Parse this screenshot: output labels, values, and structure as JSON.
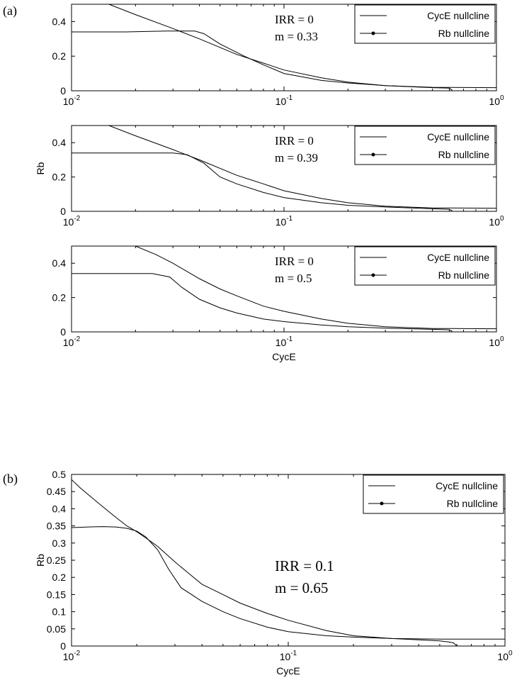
{
  "panel_labels": [
    "(a)",
    "(b)"
  ],
  "chart_data": [
    {
      "type": "line",
      "panel": "(a)",
      "xscale": "log",
      "xlim": [
        0.01,
        1
      ],
      "ylim": [
        0,
        0.5
      ],
      "xticks": [
        0.01,
        0.1,
        1
      ],
      "yticks": [
        "0",
        "0.2",
        "0.4"
      ],
      "xlabel": "",
      "ylabel": "",
      "annotation": [
        "IRR = 0",
        "m = 0.33"
      ],
      "legend": [
        "CycE nullcline",
        "Rb nullcline"
      ],
      "legend_position": "top-right",
      "series": [
        {
          "name": "CycE nullcline",
          "x": [
            0.01,
            0.018,
            0.028,
            0.038,
            0.042,
            0.05,
            0.065,
            0.08,
            0.1,
            0.15,
            0.2,
            0.3,
            0.5,
            0.6,
            0.62
          ],
          "y": [
            0.34,
            0.34,
            0.345,
            0.345,
            0.33,
            0.27,
            0.2,
            0.15,
            0.1,
            0.06,
            0.045,
            0.03,
            0.018,
            0.015,
            0.003
          ]
        },
        {
          "name": "Rb nullcline",
          "x": [
            0.01,
            0.015,
            0.02,
            0.03,
            0.04,
            0.06,
            0.08,
            0.1,
            0.15,
            0.2,
            0.3,
            0.5,
            1.0
          ],
          "y": [
            0.62,
            0.5,
            0.44,
            0.36,
            0.3,
            0.21,
            0.16,
            0.12,
            0.075,
            0.05,
            0.03,
            0.02,
            0.018
          ]
        }
      ]
    },
    {
      "type": "line",
      "xscale": "log",
      "xlim": [
        0.01,
        1
      ],
      "ylim": [
        0,
        0.5
      ],
      "xticks": [
        0.01,
        0.1,
        1
      ],
      "yticks": [
        "0",
        "0.2",
        "0.4"
      ],
      "xlabel": "",
      "ylabel": "Rb",
      "annotation": [
        "IRR = 0",
        "m = 0.39"
      ],
      "legend": [
        "CycE nullcline",
        "Rb nullcline"
      ],
      "legend_position": "top-right",
      "series": [
        {
          "name": "CycE nullcline",
          "x": [
            0.01,
            0.02,
            0.03,
            0.035,
            0.042,
            0.05,
            0.06,
            0.08,
            0.1,
            0.15,
            0.2,
            0.3,
            0.5,
            0.6,
            0.62
          ],
          "y": [
            0.34,
            0.34,
            0.34,
            0.33,
            0.28,
            0.2,
            0.16,
            0.11,
            0.08,
            0.05,
            0.035,
            0.025,
            0.015,
            0.012,
            0.003
          ]
        },
        {
          "name": "Rb nullcline",
          "x": [
            0.01,
            0.015,
            0.02,
            0.03,
            0.04,
            0.06,
            0.08,
            0.1,
            0.15,
            0.2,
            0.3,
            0.5,
            1.0
          ],
          "y": [
            0.62,
            0.5,
            0.44,
            0.36,
            0.3,
            0.21,
            0.16,
            0.12,
            0.075,
            0.05,
            0.03,
            0.02,
            0.018
          ]
        }
      ]
    },
    {
      "type": "line",
      "xscale": "log",
      "xlim": [
        0.01,
        1
      ],
      "ylim": [
        0,
        0.5
      ],
      "xticks": [
        0.01,
        0.1,
        1
      ],
      "yticks": [
        "0",
        "0.2",
        "0.4"
      ],
      "xlabel": "CycE",
      "ylabel": "",
      "annotation": [
        "IRR = 0",
        "m = 0.5"
      ],
      "legend": [
        "CycE nullcline",
        "Rb nullcline"
      ],
      "legend_position": "top-right",
      "series": [
        {
          "name": "CycE nullcline",
          "x": [
            0.01,
            0.02,
            0.024,
            0.029,
            0.033,
            0.04,
            0.05,
            0.06,
            0.08,
            0.1,
            0.15,
            0.2,
            0.3,
            0.5,
            0.6,
            0.62
          ],
          "y": [
            0.34,
            0.34,
            0.34,
            0.32,
            0.26,
            0.19,
            0.14,
            0.11,
            0.075,
            0.06,
            0.04,
            0.03,
            0.022,
            0.015,
            0.012,
            0.003
          ]
        },
        {
          "name": "Rb nullcline",
          "x": [
            0.01,
            0.015,
            0.02,
            0.025,
            0.03,
            0.04,
            0.05,
            0.06,
            0.08,
            0.1,
            0.15,
            0.2,
            0.3,
            0.5,
            1.0
          ],
          "y": [
            0.65,
            0.55,
            0.5,
            0.45,
            0.4,
            0.31,
            0.25,
            0.21,
            0.15,
            0.12,
            0.075,
            0.05,
            0.03,
            0.02,
            0.018
          ]
        }
      ]
    },
    {
      "type": "line",
      "panel": "(b)",
      "xscale": "log",
      "xlim": [
        0.01,
        1
      ],
      "ylim": [
        0,
        0.5
      ],
      "xticks": [
        0.01,
        0.1,
        1
      ],
      "yticks": [
        "0",
        "0.05",
        "0.1",
        "0.15",
        "0.2",
        "0.25",
        "0.3",
        "0.35",
        "0.4",
        "0.45",
        "0.5"
      ],
      "xlabel": "CycE",
      "ylabel": "Rb",
      "annotation": [
        "IRR = 0.1",
        "m = 0.65"
      ],
      "legend": [
        "CycE nullcline",
        "Rb nullcline"
      ],
      "legend_position": "top-right",
      "series": [
        {
          "name": "CycE nullcline",
          "x": [
            0.01,
            0.012,
            0.014,
            0.016,
            0.018,
            0.02,
            0.022,
            0.025,
            0.028,
            0.032,
            0.04,
            0.05,
            0.06,
            0.08,
            0.1,
            0.15,
            0.2,
            0.3,
            0.4,
            0.5,
            0.55,
            0.58,
            0.6
          ],
          "y": [
            0.345,
            0.347,
            0.348,
            0.347,
            0.343,
            0.335,
            0.318,
            0.28,
            0.225,
            0.17,
            0.13,
            0.1,
            0.08,
            0.055,
            0.042,
            0.03,
            0.026,
            0.022,
            0.018,
            0.015,
            0.012,
            0.009,
            0.0
          ]
        },
        {
          "name": "Rb nullcline",
          "x": [
            0.01,
            0.011,
            0.012,
            0.014,
            0.016,
            0.018,
            0.02,
            0.022,
            0.025,
            0.03,
            0.035,
            0.04,
            0.05,
            0.06,
            0.08,
            0.1,
            0.15,
            0.2,
            0.3,
            0.5,
            1.0
          ],
          "y": [
            0.485,
            0.46,
            0.44,
            0.405,
            0.375,
            0.35,
            0.333,
            0.315,
            0.29,
            0.245,
            0.21,
            0.18,
            0.15,
            0.125,
            0.095,
            0.075,
            0.045,
            0.03,
            0.022,
            0.02,
            0.02
          ]
        }
      ]
    }
  ]
}
